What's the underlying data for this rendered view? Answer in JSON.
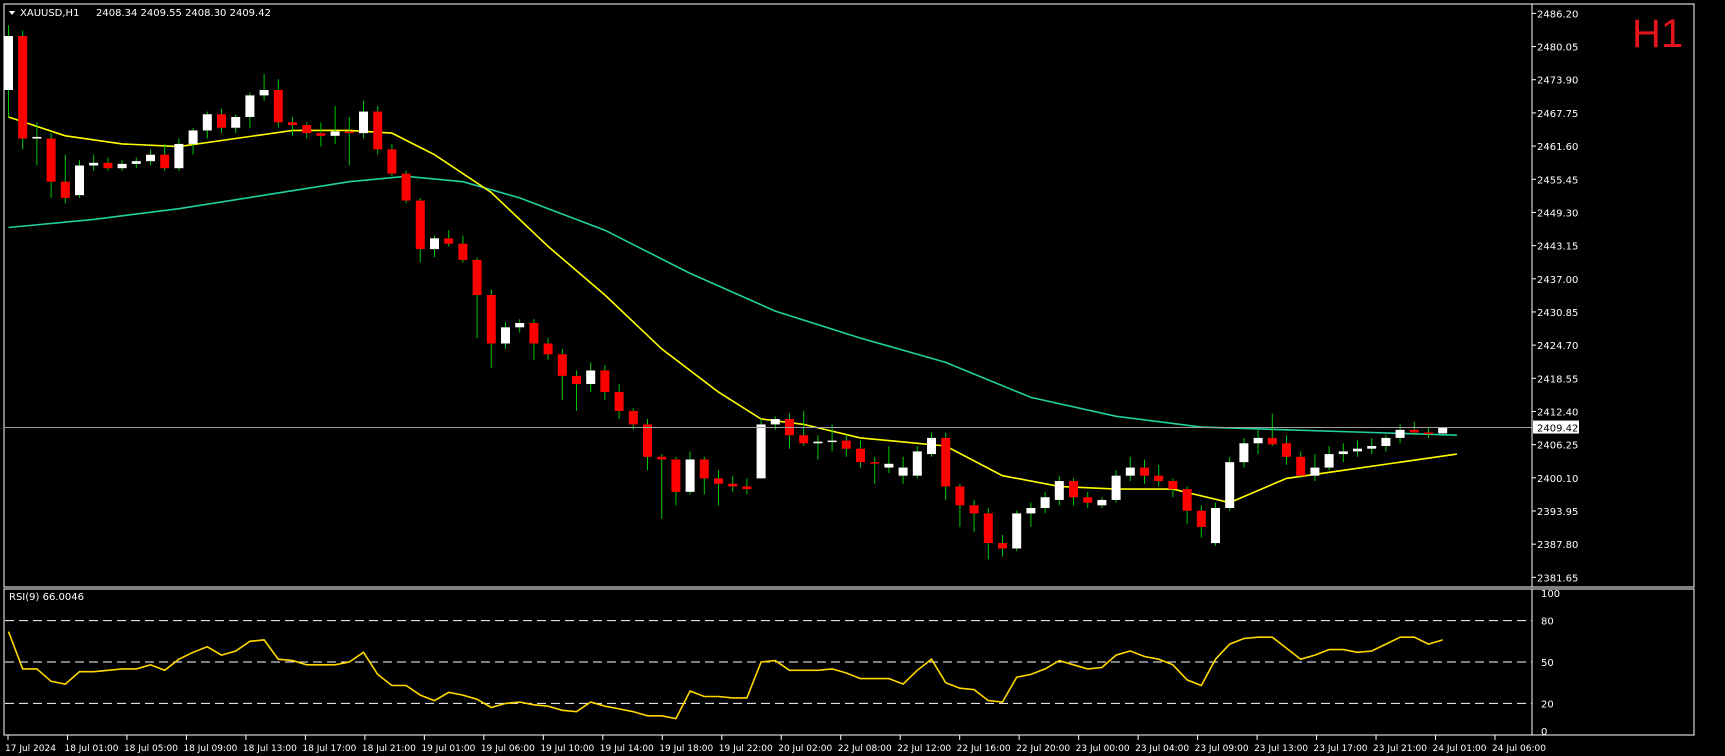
{
  "header": {
    "symbol": "XAUUSD,H1",
    "ohlc": "2408.34 2409.55 2408.30 2409.42",
    "timeframe": "H1"
  },
  "rsi_panel": {
    "label": "RSI(9) 66.0046",
    "levels": [
      "100",
      "80",
      "50",
      "20",
      "0"
    ]
  },
  "colors": {
    "background": "#000000",
    "grid": "#ffffff",
    "bull_candle": "#ffffff",
    "bear_candle": "#ff0000",
    "wick": "#00c800",
    "ma_fast": "#ffff00",
    "ma_slow": "#20d0a0",
    "rsi_line": "#ffd700",
    "bid_line": "#a0a0a0"
  },
  "chart_data": {
    "type": "candlestick",
    "price_axis_ticks": [
      "2486.20",
      "2480.05",
      "2473.90",
      "2467.75",
      "2461.60",
      "2455.45",
      "2449.30",
      "2443.15",
      "2437.00",
      "2430.85",
      "2424.70",
      "2418.55",
      "2412.40",
      "2406.25",
      "2400.10",
      "2393.95",
      "2387.80",
      "2381.65"
    ],
    "price_range": [
      2380.6,
      2487.2
    ],
    "current_price": "2409.42",
    "time_axis_labels": [
      "17 Jul 2024",
      "18 Jul 01:00",
      "18 Jul 05:00",
      "18 Jul 09:00",
      "18 Jul 13:00",
      "18 Jul 17:00",
      "18 Jul 21:00",
      "19 Jul 01:00",
      "19 Jul 06:00",
      "19 Jul 10:00",
      "19 Jul 14:00",
      "19 Jul 18:00",
      "19 Jul 22:00",
      "20 Jul 02:00",
      "22 Jul 08:00",
      "22 Jul 12:00",
      "22 Jul 16:00",
      "22 Jul 20:00",
      "23 Jul 00:00",
      "23 Jul 04:00",
      "23 Jul 09:00",
      "23 Jul 13:00",
      "23 Jul 17:00",
      "23 Jul 21:00",
      "24 Jul 01:00",
      "24 Jul 06:00"
    ],
    "candles": [
      {
        "o": 2472.0,
        "h": 2484.0,
        "l": 2467.0,
        "c": 2482.0
      },
      {
        "o": 2482.0,
        "h": 2483.0,
        "l": 2461.0,
        "c": 2463.0
      },
      {
        "o": 2463.0,
        "h": 2466.0,
        "l": 2458.0,
        "c": 2463.3
      },
      {
        "o": 2463.0,
        "h": 2464.0,
        "l": 2452.0,
        "c": 2455.0
      },
      {
        "o": 2455.0,
        "h": 2460.0,
        "l": 2451.0,
        "c": 2452.0
      },
      {
        "o": 2452.5,
        "h": 2459.0,
        "l": 2452.0,
        "c": 2458.0
      },
      {
        "o": 2458.0,
        "h": 2460.0,
        "l": 2457.0,
        "c": 2458.5
      },
      {
        "o": 2458.5,
        "h": 2459.5,
        "l": 2457.0,
        "c": 2457.5
      },
      {
        "o": 2457.5,
        "h": 2459.0,
        "l": 2457.0,
        "c": 2458.3
      },
      {
        "o": 2458.3,
        "h": 2459.5,
        "l": 2457.5,
        "c": 2458.8
      },
      {
        "o": 2458.8,
        "h": 2461.0,
        "l": 2458.0,
        "c": 2460.0
      },
      {
        "o": 2460.0,
        "h": 2462.0,
        "l": 2457.0,
        "c": 2457.5
      },
      {
        "o": 2457.5,
        "h": 2463.0,
        "l": 2457.0,
        "c": 2462.0
      },
      {
        "o": 2462.0,
        "h": 2465.0,
        "l": 2460.0,
        "c": 2464.5
      },
      {
        "o": 2464.5,
        "h": 2468.0,
        "l": 2463.0,
        "c": 2467.5
      },
      {
        "o": 2467.5,
        "h": 2468.5,
        "l": 2464.0,
        "c": 2465.0
      },
      {
        "o": 2465.0,
        "h": 2467.5,
        "l": 2464.0,
        "c": 2467.0
      },
      {
        "o": 2467.0,
        "h": 2471.5,
        "l": 2465.0,
        "c": 2471.0
      },
      {
        "o": 2471.0,
        "h": 2475.0,
        "l": 2470.0,
        "c": 2472.0
      },
      {
        "o": 2472.0,
        "h": 2474.0,
        "l": 2465.0,
        "c": 2466.0
      },
      {
        "o": 2466.0,
        "h": 2467.0,
        "l": 2463.5,
        "c": 2465.5
      },
      {
        "o": 2465.5,
        "h": 2466.0,
        "l": 2463.0,
        "c": 2464.0
      },
      {
        "o": 2464.0,
        "h": 2466.0,
        "l": 2461.5,
        "c": 2463.5
      },
      {
        "o": 2463.5,
        "h": 2469.0,
        "l": 2462.0,
        "c": 2464.3
      },
      {
        "o": 2464.3,
        "h": 2467.0,
        "l": 2458.0,
        "c": 2464.0
      },
      {
        "o": 2464.0,
        "h": 2470.0,
        "l": 2463.0,
        "c": 2468.0
      },
      {
        "o": 2468.0,
        "h": 2469.0,
        "l": 2460.0,
        "c": 2461.0
      },
      {
        "o": 2461.0,
        "h": 2462.0,
        "l": 2456.0,
        "c": 2456.5
      },
      {
        "o": 2456.5,
        "h": 2457.0,
        "l": 2451.0,
        "c": 2451.5
      },
      {
        "o": 2451.5,
        "h": 2452.0,
        "l": 2440.0,
        "c": 2442.5
      },
      {
        "o": 2442.5,
        "h": 2445.0,
        "l": 2441.0,
        "c": 2444.5
      },
      {
        "o": 2444.5,
        "h": 2446.0,
        "l": 2443.0,
        "c": 2443.5
      },
      {
        "o": 2443.5,
        "h": 2445.0,
        "l": 2440.0,
        "c": 2440.5
      },
      {
        "o": 2440.5,
        "h": 2441.0,
        "l": 2426.0,
        "c": 2434.0
      },
      {
        "o": 2434.0,
        "h": 2435.0,
        "l": 2420.5,
        "c": 2425.0
      },
      {
        "o": 2425.0,
        "h": 2429.0,
        "l": 2424.0,
        "c": 2428.0
      },
      {
        "o": 2428.0,
        "h": 2429.5,
        "l": 2427.0,
        "c": 2428.8
      },
      {
        "o": 2428.8,
        "h": 2429.5,
        "l": 2422.0,
        "c": 2425.0
      },
      {
        "o": 2425.0,
        "h": 2426.0,
        "l": 2422.0,
        "c": 2423.0
      },
      {
        "o": 2423.0,
        "h": 2424.0,
        "l": 2414.5,
        "c": 2419.0
      },
      {
        "o": 2419.0,
        "h": 2420.0,
        "l": 2412.5,
        "c": 2417.5
      },
      {
        "o": 2417.5,
        "h": 2421.5,
        "l": 2416.0,
        "c": 2420.0
      },
      {
        "o": 2420.0,
        "h": 2421.0,
        "l": 2414.5,
        "c": 2416.0
      },
      {
        "o": 2416.0,
        "h": 2417.5,
        "l": 2411.0,
        "c": 2412.5
      },
      {
        "o": 2412.5,
        "h": 2413.0,
        "l": 2409.0,
        "c": 2410.0
      },
      {
        "o": 2410.0,
        "h": 2411.0,
        "l": 2401.5,
        "c": 2404.0
      },
      {
        "o": 2404.0,
        "h": 2404.5,
        "l": 2392.5,
        "c": 2403.5
      },
      {
        "o": 2403.5,
        "h": 2404.0,
        "l": 2395.0,
        "c": 2397.5
      },
      {
        "o": 2397.5,
        "h": 2405.0,
        "l": 2397.0,
        "c": 2403.5
      },
      {
        "o": 2403.5,
        "h": 2404.0,
        "l": 2397.0,
        "c": 2400.0
      },
      {
        "o": 2400.0,
        "h": 2401.5,
        "l": 2395.0,
        "c": 2399.0
      },
      {
        "o": 2399.0,
        "h": 2400.5,
        "l": 2397.5,
        "c": 2398.5
      },
      {
        "o": 2398.5,
        "h": 2400.0,
        "l": 2397.0,
        "c": 2398.0
      },
      {
        "o": 2400.0,
        "h": 2411.0,
        "l": 2400.0,
        "c": 2410.0
      },
      {
        "o": 2410.0,
        "h": 2411.5,
        "l": 2409.0,
        "c": 2411.0
      },
      {
        "o": 2411.0,
        "h": 2412.0,
        "l": 2405.5,
        "c": 2408.0
      },
      {
        "o": 2408.0,
        "h": 2412.5,
        "l": 2406.0,
        "c": 2406.5
      },
      {
        "o": 2406.5,
        "h": 2408.0,
        "l": 2403.5,
        "c": 2406.8
      },
      {
        "o": 2406.8,
        "h": 2410.0,
        "l": 2405.0,
        "c": 2407.0
      },
      {
        "o": 2407.0,
        "h": 2408.0,
        "l": 2404.0,
        "c": 2405.5
      },
      {
        "o": 2405.5,
        "h": 2407.0,
        "l": 2402.0,
        "c": 2403.0
      },
      {
        "o": 2403.0,
        "h": 2404.0,
        "l": 2399.0,
        "c": 2402.8
      },
      {
        "o": 2402.0,
        "h": 2406.0,
        "l": 2401.0,
        "c": 2402.7
      },
      {
        "o": 2400.5,
        "h": 2404.0,
        "l": 2399.0,
        "c": 2402.0
      },
      {
        "o": 2400.5,
        "h": 2406.0,
        "l": 2400.0,
        "c": 2405.0
      },
      {
        "o": 2404.5,
        "h": 2408.5,
        "l": 2404.0,
        "c": 2407.5
      },
      {
        "o": 2407.5,
        "h": 2408.5,
        "l": 2396.0,
        "c": 2398.5
      },
      {
        "o": 2398.5,
        "h": 2399.0,
        "l": 2391.0,
        "c": 2395.0
      },
      {
        "o": 2395.0,
        "h": 2396.0,
        "l": 2390.0,
        "c": 2393.5
      },
      {
        "o": 2393.5,
        "h": 2394.5,
        "l": 2385.0,
        "c": 2388.0
      },
      {
        "o": 2388.0,
        "h": 2389.5,
        "l": 2385.5,
        "c": 2387.0
      },
      {
        "o": 2387.0,
        "h": 2394.0,
        "l": 2386.5,
        "c": 2393.5
      },
      {
        "o": 2393.5,
        "h": 2395.5,
        "l": 2391.0,
        "c": 2394.5
      },
      {
        "o": 2394.5,
        "h": 2397.5,
        "l": 2393.5,
        "c": 2396.5
      },
      {
        "o": 2396.0,
        "h": 2400.5,
        "l": 2395.0,
        "c": 2399.5
      },
      {
        "o": 2399.5,
        "h": 2400.0,
        "l": 2395.0,
        "c": 2396.5
      },
      {
        "o": 2396.5,
        "h": 2397.5,
        "l": 2394.5,
        "c": 2395.5
      },
      {
        "o": 2395.0,
        "h": 2396.5,
        "l": 2394.5,
        "c": 2396.0
      },
      {
        "o": 2396.0,
        "h": 2401.5,
        "l": 2395.5,
        "c": 2400.5
      },
      {
        "o": 2400.5,
        "h": 2404.0,
        "l": 2399.5,
        "c": 2402.0
      },
      {
        "o": 2402.0,
        "h": 2403.5,
        "l": 2399.0,
        "c": 2400.5
      },
      {
        "o": 2400.5,
        "h": 2402.5,
        "l": 2398.5,
        "c": 2399.5
      },
      {
        "o": 2399.5,
        "h": 2400.0,
        "l": 2396.5,
        "c": 2398.0
      },
      {
        "o": 2398.0,
        "h": 2398.5,
        "l": 2391.5,
        "c": 2394.0
      },
      {
        "o": 2394.0,
        "h": 2395.0,
        "l": 2389.0,
        "c": 2391.0
      },
      {
        "o": 2388.0,
        "h": 2395.5,
        "l": 2387.5,
        "c": 2394.5
      },
      {
        "o": 2394.5,
        "h": 2404.0,
        "l": 2394.0,
        "c": 2403.0
      },
      {
        "o": 2403.0,
        "h": 2407.5,
        "l": 2402.0,
        "c": 2406.5
      },
      {
        "o": 2406.5,
        "h": 2409.0,
        "l": 2404.5,
        "c": 2407.5
      },
      {
        "o": 2407.5,
        "h": 2412.0,
        "l": 2406.0,
        "c": 2406.3
      },
      {
        "o": 2406.5,
        "h": 2408.0,
        "l": 2402.5,
        "c": 2404.0
      },
      {
        "o": 2404.0,
        "h": 2405.0,
        "l": 2400.0,
        "c": 2400.5
      },
      {
        "o": 2400.5,
        "h": 2404.5,
        "l": 2399.5,
        "c": 2402.0
      },
      {
        "o": 2402.0,
        "h": 2406.0,
        "l": 2401.5,
        "c": 2404.5
      },
      {
        "o": 2404.5,
        "h": 2406.5,
        "l": 2403.0,
        "c": 2405.0
      },
      {
        "o": 2405.0,
        "h": 2407.0,
        "l": 2404.0,
        "c": 2405.5
      },
      {
        "o": 2405.5,
        "h": 2407.5,
        "l": 2404.5,
        "c": 2406.0
      },
      {
        "o": 2406.0,
        "h": 2408.0,
        "l": 2405.0,
        "c": 2407.5
      },
      {
        "o": 2407.5,
        "h": 2410.0,
        "l": 2406.5,
        "c": 2409.0
      },
      {
        "o": 2409.0,
        "h": 2410.5,
        "l": 2408.0,
        "c": 2408.5
      },
      {
        "o": 2408.5,
        "h": 2409.5,
        "l": 2407.5,
        "c": 2408.3
      },
      {
        "o": 2408.34,
        "h": 2409.55,
        "l": 2408.3,
        "c": 2409.42
      }
    ],
    "ma_fast": [
      {
        "i": 0,
        "v": 2467.0
      },
      {
        "i": 4,
        "v": 2463.5
      },
      {
        "i": 8,
        "v": 2462.0
      },
      {
        "i": 12,
        "v": 2461.5
      },
      {
        "i": 16,
        "v": 2463.0
      },
      {
        "i": 20,
        "v": 2464.5
      },
      {
        "i": 24,
        "v": 2464.5
      },
      {
        "i": 27,
        "v": 2464.0
      },
      {
        "i": 30,
        "v": 2460.0
      },
      {
        "i": 34,
        "v": 2453.0
      },
      {
        "i": 38,
        "v": 2443.0
      },
      {
        "i": 42,
        "v": 2434.0
      },
      {
        "i": 46,
        "v": 2424.0
      },
      {
        "i": 50,
        "v": 2416.0
      },
      {
        "i": 53,
        "v": 2411.0
      },
      {
        "i": 56,
        "v": 2410.0
      },
      {
        "i": 60,
        "v": 2407.5
      },
      {
        "i": 64,
        "v": 2406.5
      },
      {
        "i": 66,
        "v": 2406.0
      },
      {
        "i": 70,
        "v": 2400.5
      },
      {
        "i": 74,
        "v": 2398.5
      },
      {
        "i": 78,
        "v": 2398.0
      },
      {
        "i": 82,
        "v": 2398.0
      },
      {
        "i": 86,
        "v": 2395.5
      },
      {
        "i": 90,
        "v": 2400.0
      },
      {
        "i": 94,
        "v": 2401.5
      },
      {
        "i": 98,
        "v": 2403.0
      },
      {
        "i": 102,
        "v": 2404.5
      }
    ],
    "ma_slow": [
      {
        "i": 0,
        "v": 2446.5
      },
      {
        "i": 6,
        "v": 2448.0
      },
      {
        "i": 12,
        "v": 2450.0
      },
      {
        "i": 18,
        "v": 2452.5
      },
      {
        "i": 24,
        "v": 2455.0
      },
      {
        "i": 28,
        "v": 2456.0
      },
      {
        "i": 32,
        "v": 2455.0
      },
      {
        "i": 36,
        "v": 2452.0
      },
      {
        "i": 42,
        "v": 2446.0
      },
      {
        "i": 48,
        "v": 2438.0
      },
      {
        "i": 54,
        "v": 2431.0
      },
      {
        "i": 60,
        "v": 2426.0
      },
      {
        "i": 66,
        "v": 2421.5
      },
      {
        "i": 72,
        "v": 2415.0
      },
      {
        "i": 78,
        "v": 2411.5
      },
      {
        "i": 84,
        "v": 2409.5
      },
      {
        "i": 90,
        "v": 2409.0
      },
      {
        "i": 96,
        "v": 2408.5
      },
      {
        "i": 102,
        "v": 2408.0
      }
    ],
    "rsi_range": [
      0,
      100
    ],
    "rsi_levels": [
      80,
      50,
      20
    ],
    "rsi": [
      {
        "i": 0,
        "v": 72
      },
      {
        "i": 1,
        "v": 45
      },
      {
        "i": 2,
        "v": 45
      },
      {
        "i": 3,
        "v": 36
      },
      {
        "i": 4,
        "v": 34
      },
      {
        "i": 5,
        "v": 43
      },
      {
        "i": 6,
        "v": 43
      },
      {
        "i": 7,
        "v": 44
      },
      {
        "i": 8,
        "v": 45
      },
      {
        "i": 9,
        "v": 45
      },
      {
        "i": 10,
        "v": 48
      },
      {
        "i": 11,
        "v": 44
      },
      {
        "i": 12,
        "v": 52
      },
      {
        "i": 13,
        "v": 57
      },
      {
        "i": 14,
        "v": 61
      },
      {
        "i": 15,
        "v": 55
      },
      {
        "i": 16,
        "v": 58
      },
      {
        "i": 17,
        "v": 65
      },
      {
        "i": 18,
        "v": 66
      },
      {
        "i": 19,
        "v": 52
      },
      {
        "i": 20,
        "v": 51
      },
      {
        "i": 21,
        "v": 48
      },
      {
        "i": 22,
        "v": 48
      },
      {
        "i": 23,
        "v": 48
      },
      {
        "i": 24,
        "v": 50
      },
      {
        "i": 25,
        "v": 57
      },
      {
        "i": 26,
        "v": 41
      },
      {
        "i": 27,
        "v": 33
      },
      {
        "i": 28,
        "v": 33
      },
      {
        "i": 29,
        "v": 26
      },
      {
        "i": 30,
        "v": 22
      },
      {
        "i": 31,
        "v": 28
      },
      {
        "i": 32,
        "v": 26
      },
      {
        "i": 33,
        "v": 23
      },
      {
        "i": 34,
        "v": 17
      },
      {
        "i": 35,
        "v": 20
      },
      {
        "i": 36,
        "v": 21
      },
      {
        "i": 37,
        "v": 19
      },
      {
        "i": 38,
        "v": 18
      },
      {
        "i": 39,
        "v": 15
      },
      {
        "i": 40,
        "v": 14
      },
      {
        "i": 41,
        "v": 21
      },
      {
        "i": 42,
        "v": 18
      },
      {
        "i": 43,
        "v": 16
      },
      {
        "i": 44,
        "v": 14
      },
      {
        "i": 45,
        "v": 11
      },
      {
        "i": 46,
        "v": 11
      },
      {
        "i": 47,
        "v": 9
      },
      {
        "i": 48,
        "v": 29
      },
      {
        "i": 49,
        "v": 25
      },
      {
        "i": 50,
        "v": 25
      },
      {
        "i": 51,
        "v": 24
      },
      {
        "i": 52,
        "v": 24
      },
      {
        "i": 53,
        "v": 50
      },
      {
        "i": 54,
        "v": 51
      },
      {
        "i": 55,
        "v": 44
      },
      {
        "i": 56,
        "v": 44
      },
      {
        "i": 57,
        "v": 44
      },
      {
        "i": 58,
        "v": 45
      },
      {
        "i": 59,
        "v": 42
      },
      {
        "i": 60,
        "v": 38
      },
      {
        "i": 61,
        "v": 38
      },
      {
        "i": 62,
        "v": 38
      },
      {
        "i": 63,
        "v": 34
      },
      {
        "i": 64,
        "v": 44
      },
      {
        "i": 65,
        "v": 52
      },
      {
        "i": 66,
        "v": 35
      },
      {
        "i": 67,
        "v": 31
      },
      {
        "i": 68,
        "v": 30
      },
      {
        "i": 69,
        "v": 22
      },
      {
        "i": 70,
        "v": 21
      },
      {
        "i": 71,
        "v": 39
      },
      {
        "i": 72,
        "v": 41
      },
      {
        "i": 73,
        "v": 45
      },
      {
        "i": 74,
        "v": 51
      },
      {
        "i": 75,
        "v": 48
      },
      {
        "i": 76,
        "v": 45
      },
      {
        "i": 77,
        "v": 46
      },
      {
        "i": 78,
        "v": 55
      },
      {
        "i": 79,
        "v": 58
      },
      {
        "i": 80,
        "v": 54
      },
      {
        "i": 81,
        "v": 52
      },
      {
        "i": 82,
        "v": 48
      },
      {
        "i": 83,
        "v": 37
      },
      {
        "i": 84,
        "v": 33
      },
      {
        "i": 85,
        "v": 52
      },
      {
        "i": 86,
        "v": 63
      },
      {
        "i": 87,
        "v": 67
      },
      {
        "i": 88,
        "v": 68
      },
      {
        "i": 89,
        "v": 68
      },
      {
        "i": 90,
        "v": 60
      },
      {
        "i": 91,
        "v": 52
      },
      {
        "i": 92,
        "v": 55
      },
      {
        "i": 93,
        "v": 59
      },
      {
        "i": 94,
        "v": 59
      },
      {
        "i": 95,
        "v": 57
      },
      {
        "i": 96,
        "v": 58
      },
      {
        "i": 97,
        "v": 63
      },
      {
        "i": 98,
        "v": 68
      },
      {
        "i": 99,
        "v": 68
      },
      {
        "i": 100,
        "v": 63
      },
      {
        "i": 101,
        "v": 66
      }
    ]
  }
}
